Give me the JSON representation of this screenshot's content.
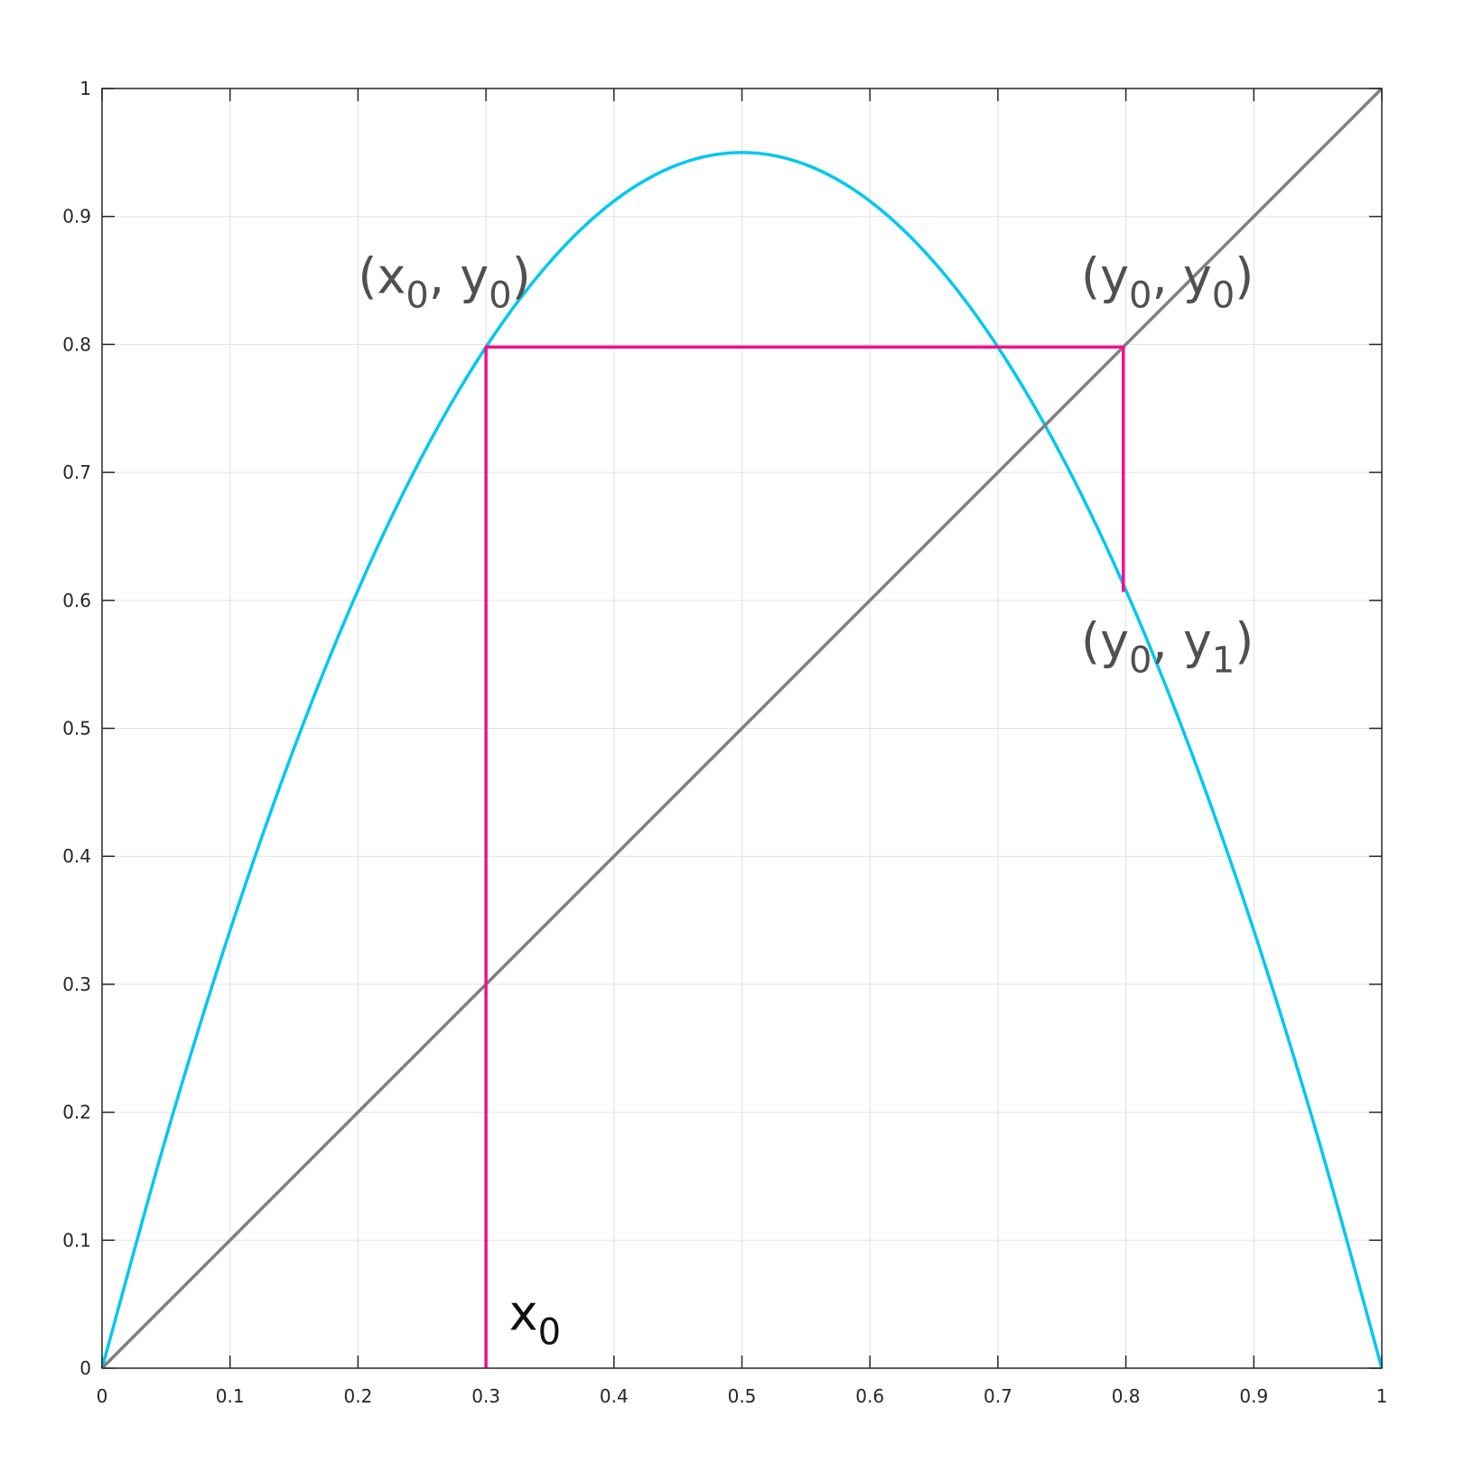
{
  "chart_data": {
    "type": "line",
    "title": "",
    "xlabel": "",
    "ylabel": "",
    "xlim": [
      0,
      1
    ],
    "ylim": [
      0,
      1
    ],
    "grid": true,
    "x_ticks": [
      "0",
      "0.1",
      "0.2",
      "0.3",
      "0.4",
      "0.5",
      "0.6",
      "0.7",
      "0.8",
      "0.9",
      "1"
    ],
    "y_ticks": [
      "0",
      "0.1",
      "0.2",
      "0.3",
      "0.4",
      "0.5",
      "0.6",
      "0.7",
      "0.8",
      "0.9",
      "1"
    ],
    "series": [
      {
        "color": "#00c8f0",
        "x": [
          0,
          0.05,
          0.1,
          0.15,
          0.2,
          0.25,
          0.3,
          0.35,
          0.4,
          0.45,
          0.5,
          0.55,
          0.6,
          0.65,
          0.7,
          0.75,
          0.8,
          0.85,
          0.9,
          0.95,
          1
        ],
        "y": [
          0,
          0.1805,
          0.342,
          0.4845,
          0.608,
          0.7125,
          0.798,
          0.8645,
          0.912,
          0.9405,
          0.95,
          0.9405,
          0.912,
          0.8645,
          0.798,
          0.7125,
          0.608,
          0.4845,
          0.342,
          0.1805,
          0
        ]
      },
      {
        "color": "#7f7f7f",
        "x": [
          0,
          1
        ],
        "y": [
          0,
          1
        ]
      },
      {
        "color": "#f0108c",
        "x": [
          0.3,
          0.3,
          0.798,
          0.798
        ],
        "y": [
          0,
          0.798,
          0.798,
          0.6065
        ]
      }
    ],
    "annotations": [
      {
        "x": 0.2,
        "y": 0.84,
        "base": "(x",
        "sub1": "0",
        "mid": ", y",
        "sub2": "0",
        "end": ")"
      },
      {
        "x": 0.765,
        "y": 0.84,
        "base": "(y",
        "sub1": "0",
        "mid": ", y",
        "sub2": "0",
        "end": ")"
      },
      {
        "x": 0.765,
        "y": 0.555,
        "base": "(y",
        "sub1": "0",
        "mid": ", y",
        "sub2": "1",
        "end": ")"
      },
      {
        "x": 0.318,
        "y": 0.03,
        "base": "x",
        "sub1": "0",
        "mid": "",
        "sub2": "",
        "end": ""
      }
    ]
  }
}
